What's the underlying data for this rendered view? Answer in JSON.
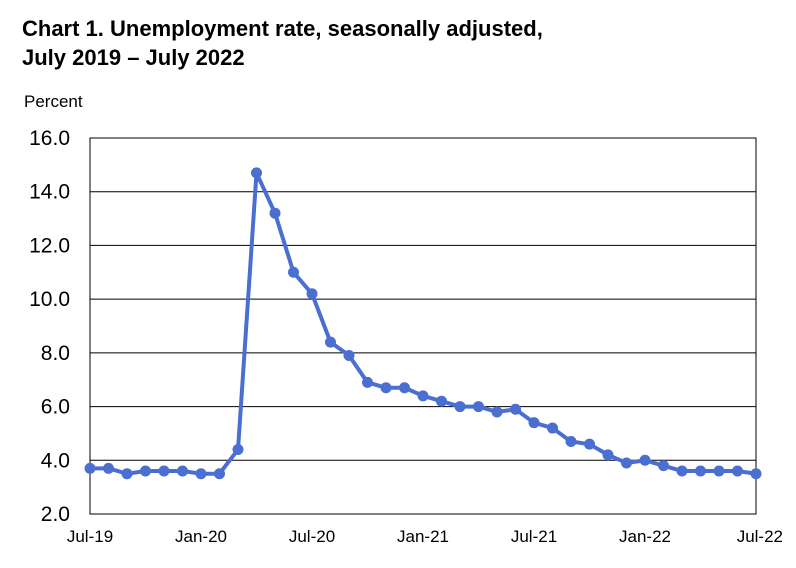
{
  "chart_data": {
    "type": "line",
    "title_line1": "Chart 1. Unemployment rate, seasonally adjusted,",
    "title_line2": "July 2019 – July 2022",
    "ylabel": "Percent",
    "xlabel": "",
    "ylim": [
      2.0,
      16.0
    ],
    "y_ticks": [
      "2.0",
      "4.0",
      "6.0",
      "8.0",
      "10.0",
      "12.0",
      "14.0",
      "16.0"
    ],
    "x_tick_labels": [
      "Jul-19",
      "Jan-20",
      "Jul-20",
      "Jan-21",
      "Jul-21",
      "Jan-22",
      "Jul-22"
    ],
    "x_tick_indices": [
      0,
      6,
      12,
      18,
      24,
      30,
      36
    ],
    "grid": true,
    "series_color": "#4a6fd1",
    "series": [
      {
        "name": "",
        "values": [
          3.7,
          3.7,
          3.5,
          3.6,
          3.6,
          3.6,
          3.5,
          3.5,
          4.4,
          14.7,
          13.2,
          11.0,
          10.2,
          8.4,
          7.9,
          6.9,
          6.7,
          6.7,
          6.4,
          6.2,
          6.0,
          6.0,
          5.8,
          5.9,
          5.4,
          5.2,
          4.7,
          4.6,
          4.2,
          3.9,
          4.0,
          3.8,
          3.6,
          3.6,
          3.6,
          3.6,
          3.5
        ]
      }
    ]
  }
}
